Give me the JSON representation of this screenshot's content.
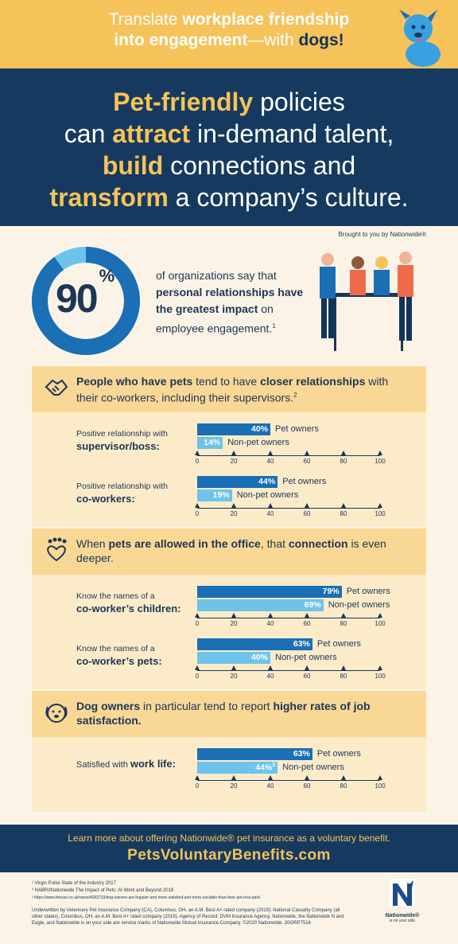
{
  "header": {
    "line1_a": "Translate ",
    "line1_b": "workplace friendship",
    "line2_a": "into engagement",
    "line2_b": "—with ",
    "line2_c": "dogs!"
  },
  "hero": {
    "w1": "Pet-friendly",
    "t1": " policies",
    "t2": "can ",
    "w2": "attract",
    "t3": " in-demand talent,",
    "w3": "build",
    "t4": " connections and",
    "w4": "transform",
    "t5": " a company’s culture."
  },
  "brought_by": "Brought to you by Nationwide®",
  "stat": {
    "value": "90",
    "unit": "%",
    "fraction": 0.9,
    "line1": "of organizations say that",
    "bold": "personal relationships have the greatest impact",
    "line2": " on employee engagement.",
    "note": "1"
  },
  "section1": {
    "head_bold1": "People who have pets",
    "head_t1": " tend to have ",
    "head_bold2": "closer relationships",
    "head_t2": " with their co-workers, including their supervisors.",
    "note": "2",
    "charts": [
      {
        "label_small": "Positive relationship with",
        "label_bold": "supervisor/boss:",
        "pet": 40,
        "non": 14
      },
      {
        "label_small": "Positive relationship with",
        "label_bold": "co-workers:",
        "pet": 44,
        "non": 19
      }
    ]
  },
  "section2": {
    "head_t1": "When ",
    "head_bold1": "pets are allowed in the office",
    "head_t2": ", that ",
    "head_bold2": "connection",
    "head_t3": " is even deeper.",
    "charts": [
      {
        "label_small": "Know the names of a",
        "label_bold": "co-worker’s children:",
        "pet": 79,
        "non": 69
      },
      {
        "label_small": "Know the names of a",
        "label_bold": "co-worker’s pets:",
        "pet": 63,
        "non": 40
      }
    ]
  },
  "section3": {
    "head_bold1": "Dog owners",
    "head_t1": " in particular tend to report ",
    "head_bold2": "higher rates of job satisfaction.",
    "charts": [
      {
        "label_small": "Satisfied with ",
        "label_bold": "work life:",
        "pet": 63,
        "non": 44,
        "non_note": "3"
      }
    ]
  },
  "legend": {
    "pet": "Pet owners",
    "non": "Non-pet owners"
  },
  "axis_ticks": [
    "0",
    "20",
    "40",
    "60",
    "80",
    "100"
  ],
  "chart_data": {
    "type": "bar",
    "orientation": "horizontal",
    "xlim": [
      0,
      100
    ],
    "categories": [
      "Positive relationship with supervisor/boss:",
      "Positive relationship with co-workers:",
      "Know the names of a co-worker’s children:",
      "Know the names of a co-worker’s pets:",
      "Satisfied with work life:"
    ],
    "series": [
      {
        "name": "Pet owners",
        "values": [
          40,
          44,
          79,
          63,
          63
        ]
      },
      {
        "name": "Non-pet owners",
        "values": [
          14,
          19,
          69,
          40,
          44
        ]
      }
    ]
  },
  "cta": {
    "line": "Learn more about offering Nationwide® pet insurance as a voluntary benefit.",
    "url": "PetsVoluntaryBenefits.com"
  },
  "footnotes": [
    "¹ Virgin Pulse State of the Industry 2017",
    "² HABRI/Nationwide The Impact of Pets: At Work and Beyond 2018",
    "³ https://www.thesun.co.uk/news/4093733/dog-owners-are-happier-and-more-satisfied-and-more-sociable-than-their-pet-less-pals/"
  ],
  "legal": "Underwritten by Veterinary Pet Insurance Company (CA), Columbus, OH, an A.M. Best A+ rated company (2019); National Casualty Company (all other states), Columbus, OH, an A.M. Best A+ rated company (2019). Agency of Record: DVM Insurance Agency. Nationwide, the Nationwide N and Eagle, and Nationwide is on your side are service marks of Nationwide Mutual Insurance Company. ©2020 Nationwide. 20GRP7516",
  "logo": {
    "name": "Nationwide®",
    "tagline": "is on your side"
  },
  "colors": {
    "yellow": "#f6c25a",
    "navy": "#163a5f",
    "pet_bar": "#1a6fb5",
    "non_bar": "#6ec3ea"
  }
}
